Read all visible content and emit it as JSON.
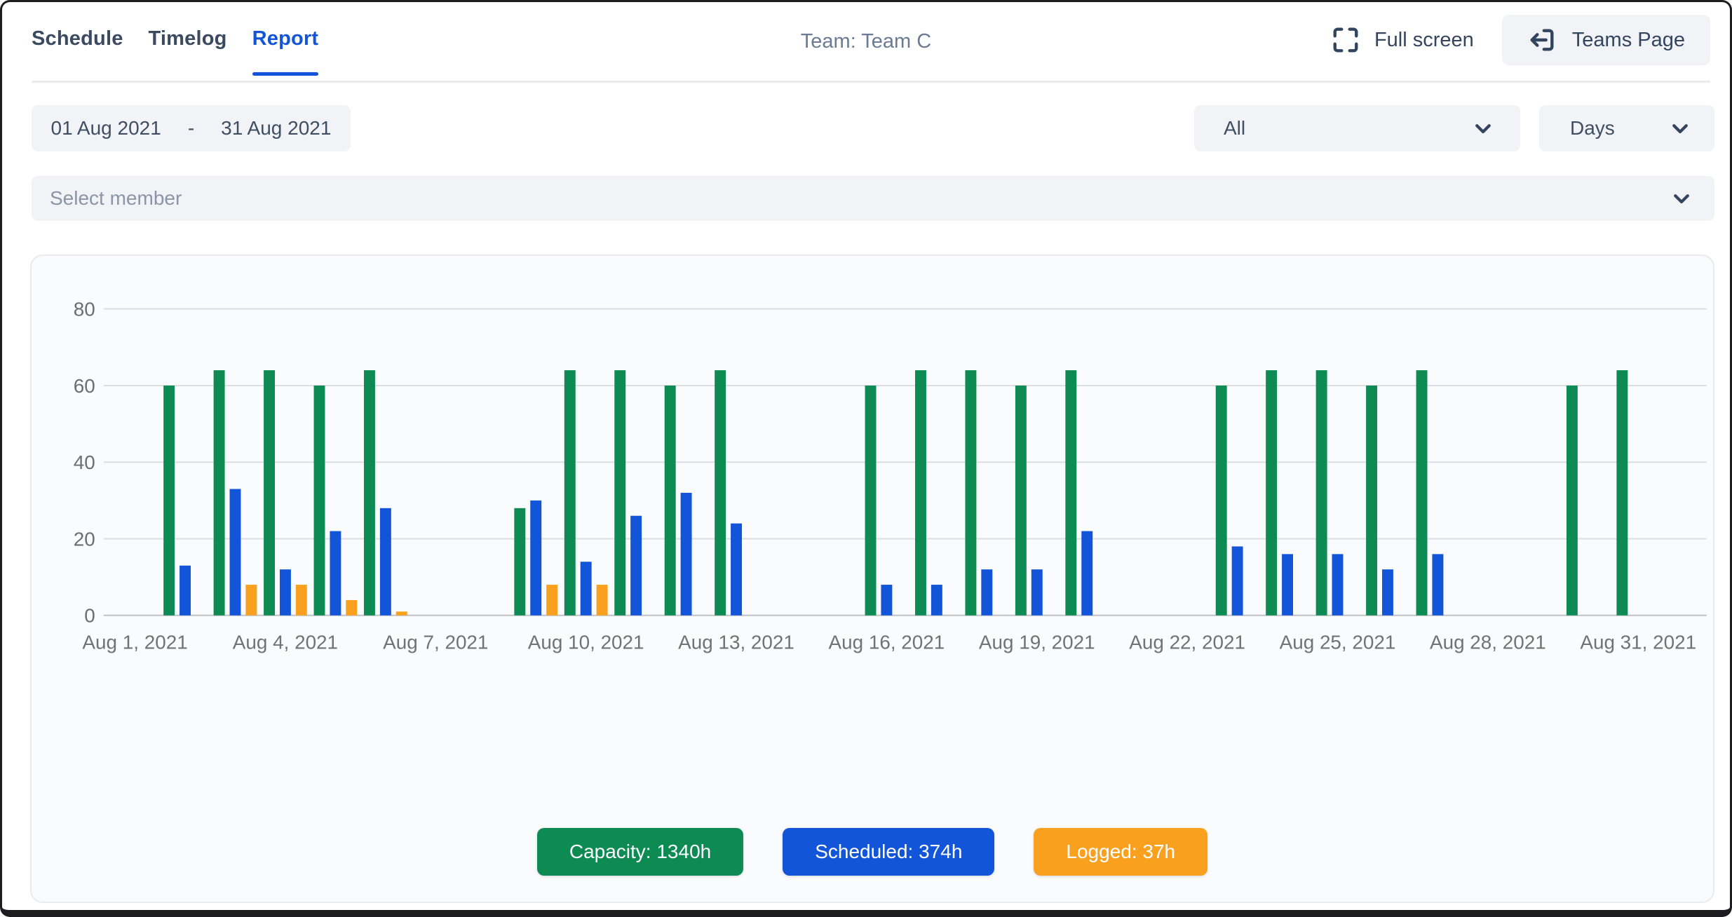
{
  "header": {
    "tabs": [
      {
        "label": "Schedule",
        "active": false
      },
      {
        "label": "Timelog",
        "active": false
      },
      {
        "label": "Report",
        "active": true
      }
    ],
    "team_title": "Team: Team C",
    "fullscreen_label": "Full screen",
    "teams_page_label": "Teams Page"
  },
  "filters": {
    "date_start": "01 Aug 2021",
    "date_separator": "-",
    "date_end": "31 Aug 2021",
    "scope_value": "All",
    "unit_value": "Days",
    "member_placeholder": "Select member"
  },
  "legend": [
    {
      "label": "Capacity: 1340h",
      "color": "#0E8A53"
    },
    {
      "label": "Scheduled: 374h",
      "color": "#1355D8"
    },
    {
      "label": "Logged: 37h",
      "color": "#F9A11F"
    }
  ],
  "chart_data": {
    "type": "bar",
    "title": "Team capacity / scheduled / logged hours per day",
    "xlabel": "",
    "ylabel": "",
    "ylim": [
      0,
      80
    ],
    "y_ticks": [
      0,
      20,
      40,
      60,
      80
    ],
    "grid": true,
    "legend_position": "bottom",
    "x_tick_labels": [
      "Aug 1, 2021",
      "Aug 4, 2021",
      "Aug 7, 2021",
      "Aug 10, 2021",
      "Aug 13, 2021",
      "Aug 16, 2021",
      "Aug 19, 2021",
      "Aug 22, 2021",
      "Aug 25, 2021",
      "Aug 28, 2021",
      "Aug 31, 2021"
    ],
    "x_tick_every_days": 3,
    "series_meta": [
      {
        "name": "Capacity",
        "total_hours": 1340,
        "color": "#0E8A53"
      },
      {
        "name": "Scheduled",
        "total_hours": 374,
        "color": "#1355D8"
      },
      {
        "name": "Logged",
        "total_hours": 37,
        "color": "#F9A11F"
      }
    ],
    "days": [
      {
        "date": "Aug 1, 2021",
        "capacity": 0,
        "scheduled": 0,
        "logged": 0
      },
      {
        "date": "Aug 2, 2021",
        "capacity": 60,
        "scheduled": 13,
        "logged": 0
      },
      {
        "date": "Aug 3, 2021",
        "capacity": 64,
        "scheduled": 33,
        "logged": 8
      },
      {
        "date": "Aug 4, 2021",
        "capacity": 64,
        "scheduled": 12,
        "logged": 8
      },
      {
        "date": "Aug 5, 2021",
        "capacity": 60,
        "scheduled": 22,
        "logged": 4
      },
      {
        "date": "Aug 6, 2021",
        "capacity": 64,
        "scheduled": 28,
        "logged": 1
      },
      {
        "date": "Aug 7, 2021",
        "capacity": 0,
        "scheduled": 0,
        "logged": 0
      },
      {
        "date": "Aug 8, 2021",
        "capacity": 0,
        "scheduled": 0,
        "logged": 0
      },
      {
        "date": "Aug 9, 2021",
        "capacity": 28,
        "scheduled": 30,
        "logged": 8
      },
      {
        "date": "Aug 10, 2021",
        "capacity": 64,
        "scheduled": 14,
        "logged": 8
      },
      {
        "date": "Aug 11, 2021",
        "capacity": 64,
        "scheduled": 26,
        "logged": 0
      },
      {
        "date": "Aug 12, 2021",
        "capacity": 60,
        "scheduled": 32,
        "logged": 0
      },
      {
        "date": "Aug 13, 2021",
        "capacity": 64,
        "scheduled": 24,
        "logged": 0
      },
      {
        "date": "Aug 14, 2021",
        "capacity": 0,
        "scheduled": 0,
        "logged": 0
      },
      {
        "date": "Aug 15, 2021",
        "capacity": 0,
        "scheduled": 0,
        "logged": 0
      },
      {
        "date": "Aug 16, 2021",
        "capacity": 60,
        "scheduled": 8,
        "logged": 0
      },
      {
        "date": "Aug 17, 2021",
        "capacity": 64,
        "scheduled": 8,
        "logged": 0
      },
      {
        "date": "Aug 18, 2021",
        "capacity": 64,
        "scheduled": 12,
        "logged": 0
      },
      {
        "date": "Aug 19, 2021",
        "capacity": 60,
        "scheduled": 12,
        "logged": 0
      },
      {
        "date": "Aug 20, 2021",
        "capacity": 64,
        "scheduled": 22,
        "logged": 0
      },
      {
        "date": "Aug 21, 2021",
        "capacity": 0,
        "scheduled": 0,
        "logged": 0
      },
      {
        "date": "Aug 22, 2021",
        "capacity": 0,
        "scheduled": 0,
        "logged": 0
      },
      {
        "date": "Aug 23, 2021",
        "capacity": 60,
        "scheduled": 18,
        "logged": 0
      },
      {
        "date": "Aug 24, 2021",
        "capacity": 64,
        "scheduled": 16,
        "logged": 0
      },
      {
        "date": "Aug 25, 2021",
        "capacity": 64,
        "scheduled": 16,
        "logged": 0
      },
      {
        "date": "Aug 26, 2021",
        "capacity": 60,
        "scheduled": 12,
        "logged": 0
      },
      {
        "date": "Aug 27, 2021",
        "capacity": 64,
        "scheduled": 16,
        "logged": 0
      },
      {
        "date": "Aug 28, 2021",
        "capacity": 0,
        "scheduled": 0,
        "logged": 0
      },
      {
        "date": "Aug 29, 2021",
        "capacity": 0,
        "scheduled": 0,
        "logged": 0
      },
      {
        "date": "Aug 30, 2021",
        "capacity": 60,
        "scheduled": 0,
        "logged": 0
      },
      {
        "date": "Aug 31, 2021",
        "capacity": 64,
        "scheduled": 0,
        "logged": 0
      }
    ]
  }
}
